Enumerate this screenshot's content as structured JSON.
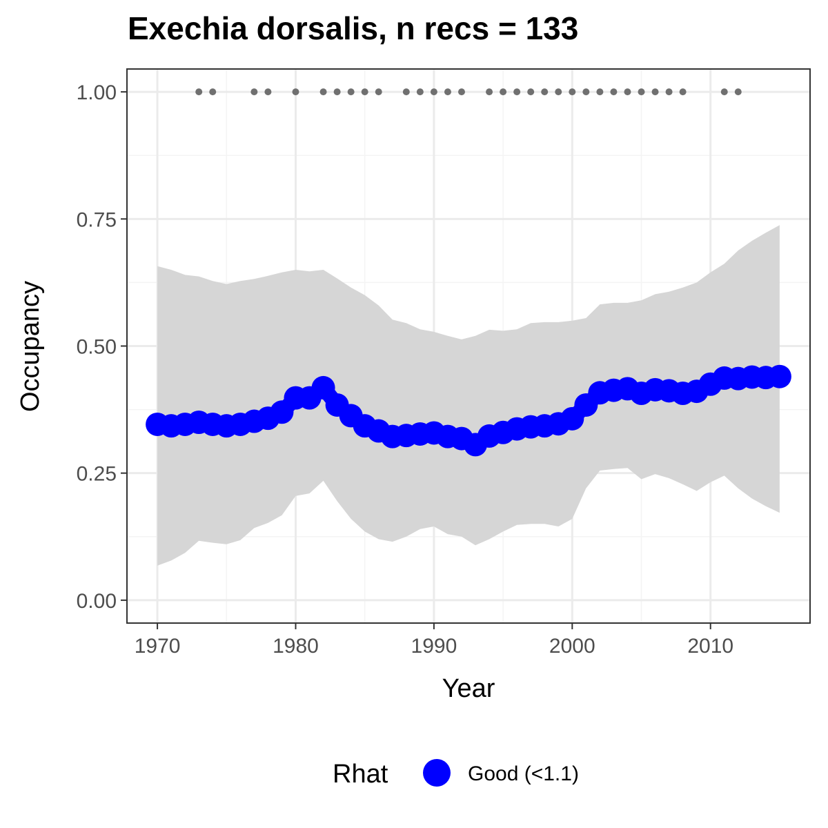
{
  "chart_data": {
    "type": "line",
    "title": "Exechia dorsalis, n recs = 133",
    "xlabel": "Year",
    "ylabel": "Occupancy",
    "xlim": [
      1967.8,
      2017.2
    ],
    "ylim": [
      -0.045,
      1.045
    ],
    "x_ticks": [
      1970,
      1980,
      1990,
      2000,
      2010
    ],
    "y_ticks": [
      0,
      0.25,
      0.5,
      0.75,
      1
    ],
    "x_tick_labels": [
      "1970",
      "1980",
      "1990",
      "2000",
      "2010"
    ],
    "y_tick_labels": [
      "0.00",
      "0.25",
      "0.50",
      "0.75",
      "1.00"
    ],
    "grid": true,
    "legend": {
      "title": "Rhat",
      "entries": [
        {
          "label": "Good (<1.1)",
          "color": "#0000ff"
        }
      ],
      "position": "bottom"
    },
    "colors": {
      "series": "#0000ff",
      "ribbon": "#d6d6d6",
      "records": "#707070",
      "grid_major": "#ebebeb",
      "grid_minor": "#f4f4f4",
      "panel_border": "#333333"
    },
    "x": [
      1970,
      1971,
      1972,
      1973,
      1974,
      1975,
      1976,
      1977,
      1978,
      1979,
      1980,
      1981,
      1982,
      1983,
      1984,
      1985,
      1986,
      1987,
      1988,
      1989,
      1990,
      1991,
      1992,
      1993,
      1994,
      1995,
      1996,
      1997,
      1998,
      1999,
      2000,
      2001,
      2002,
      2003,
      2004,
      2005,
      2006,
      2007,
      2008,
      2009,
      2010,
      2011,
      2012,
      2013,
      2014,
      2015
    ],
    "occupancy": [
      0.346,
      0.343,
      0.346,
      0.35,
      0.346,
      0.343,
      0.346,
      0.352,
      0.358,
      0.37,
      0.398,
      0.398,
      0.418,
      0.384,
      0.363,
      0.343,
      0.333,
      0.322,
      0.324,
      0.327,
      0.329,
      0.322,
      0.318,
      0.306,
      0.323,
      0.33,
      0.337,
      0.341,
      0.343,
      0.347,
      0.357,
      0.384,
      0.408,
      0.413,
      0.416,
      0.407,
      0.414,
      0.412,
      0.407,
      0.411,
      0.425,
      0.437,
      0.436,
      0.439,
      0.438,
      0.44
    ],
    "upper": [
      0.657,
      0.65,
      0.64,
      0.637,
      0.628,
      0.622,
      0.628,
      0.632,
      0.638,
      0.645,
      0.65,
      0.647,
      0.65,
      0.633,
      0.615,
      0.6,
      0.58,
      0.552,
      0.545,
      0.533,
      0.528,
      0.52,
      0.513,
      0.52,
      0.532,
      0.53,
      0.533,
      0.545,
      0.547,
      0.547,
      0.55,
      0.555,
      0.582,
      0.585,
      0.585,
      0.59,
      0.602,
      0.607,
      0.615,
      0.625,
      0.645,
      0.662,
      0.688,
      0.707,
      0.723,
      0.738
    ],
    "lower": [
      0.068,
      0.078,
      0.093,
      0.117,
      0.113,
      0.11,
      0.118,
      0.142,
      0.152,
      0.167,
      0.205,
      0.21,
      0.235,
      0.195,
      0.16,
      0.135,
      0.12,
      0.115,
      0.125,
      0.14,
      0.145,
      0.13,
      0.125,
      0.108,
      0.12,
      0.135,
      0.148,
      0.15,
      0.15,
      0.145,
      0.16,
      0.22,
      0.255,
      0.258,
      0.26,
      0.238,
      0.248,
      0.24,
      0.228,
      0.215,
      0.232,
      0.245,
      0.22,
      0.2,
      0.185,
      0.172
    ],
    "record_years": [
      1973,
      1974,
      1977,
      1978,
      1980,
      1982,
      1983,
      1984,
      1985,
      1986,
      1988,
      1989,
      1990,
      1991,
      1992,
      1994,
      1995,
      1996,
      1997,
      1998,
      1999,
      2000,
      2001,
      2002,
      2003,
      2004,
      2005,
      2006,
      2007,
      2008,
      2011,
      2012
    ],
    "record_value": 1.0
  }
}
